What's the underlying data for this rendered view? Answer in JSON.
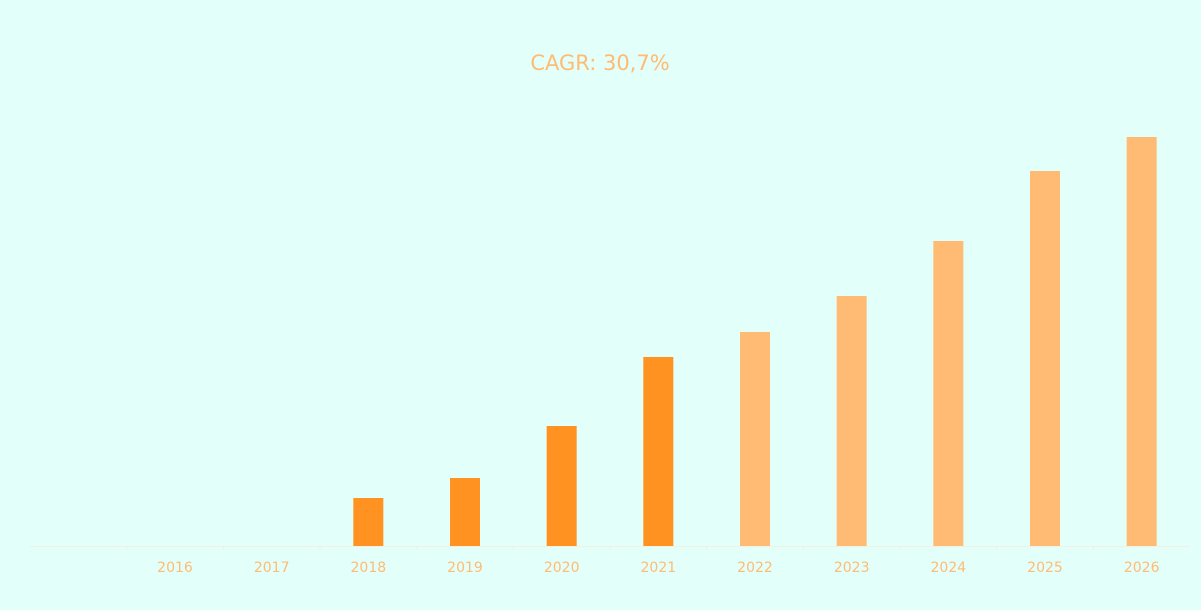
{
  "chart_data": {
    "type": "bar",
    "title": "CAGR: 30,7%",
    "categories": [
      null,
      "2016",
      "2017",
      "2018",
      "2019",
      "2020",
      "2021",
      "2022",
      "2023",
      "2024",
      "2025",
      "2026"
    ],
    "values": [
      null,
      null,
      null,
      48,
      68,
      120,
      189,
      214,
      250,
      305,
      375,
      409
    ],
    "colors": [
      null,
      null,
      null,
      "#ff9220",
      "#ff9220",
      "#ff9220",
      "#ff9220",
      "#ffbb73",
      "#ffbb73",
      "#ffbb73",
      "#ffbb73",
      "#ffbb73"
    ],
    "ylim": [
      0,
      430
    ],
    "grid": false
  }
}
